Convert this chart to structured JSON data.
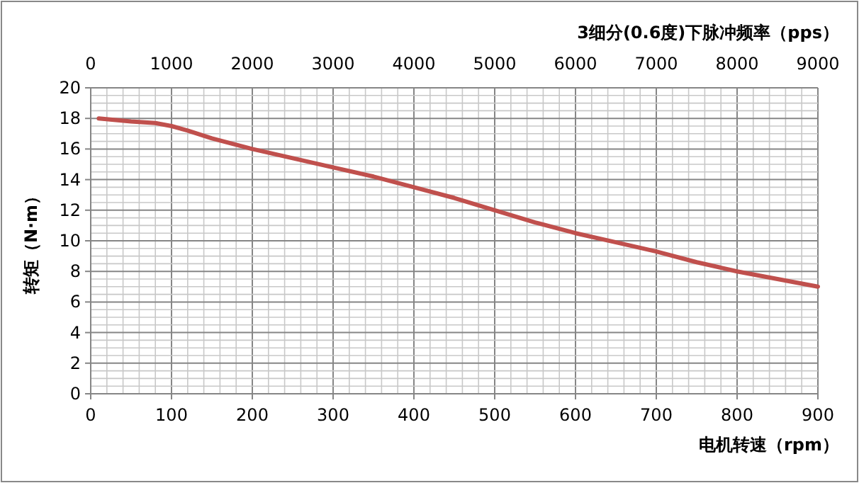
{
  "chart_data": {
    "type": "line",
    "xlabel": "电机转速（rpm）",
    "ylabel": "转矩（N·m）",
    "x2label": "3细分(0.6度)下脉冲频率（pps）",
    "xlim": [
      0,
      900
    ],
    "xticks": [
      0,
      100,
      200,
      300,
      400,
      500,
      600,
      700,
      800,
      900
    ],
    "x2lim": [
      0,
      9000
    ],
    "x2ticks": [
      0,
      1000,
      2000,
      3000,
      4000,
      5000,
      6000,
      7000,
      8000,
      9000
    ],
    "ylim": [
      0,
      20
    ],
    "yticks": [
      0,
      2,
      4,
      6,
      8,
      10,
      12,
      14,
      16,
      18,
      20
    ],
    "grid": true,
    "marker": "none",
    "line_style": "solid",
    "series": [
      {
        "color": "#c0504d",
        "x": [
          10,
          50,
          80,
          100,
          120,
          150,
          200,
          250,
          300,
          350,
          400,
          450,
          500,
          550,
          600,
          650,
          700,
          750,
          800,
          850,
          900
        ],
        "values": [
          18,
          17.8,
          17.7,
          17.5,
          17.2,
          16.7,
          16,
          15.4,
          14.8,
          14.2,
          13.5,
          12.8,
          12,
          11.2,
          10.5,
          9.9,
          9.3,
          8.6,
          8,
          7.5,
          7
        ]
      }
    ]
  }
}
